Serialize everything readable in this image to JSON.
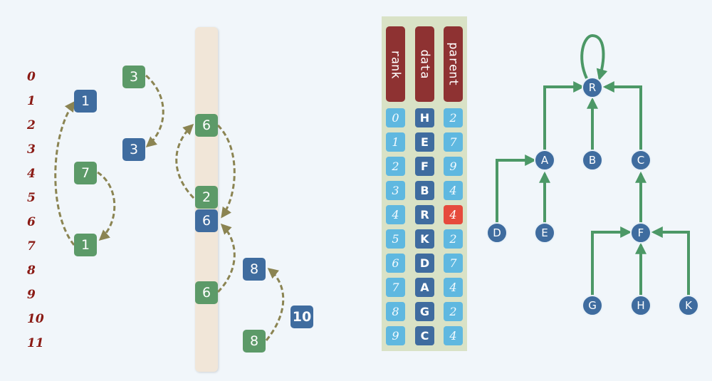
{
  "indices": [
    "0",
    "1",
    "2",
    "3",
    "4",
    "5",
    "6",
    "7",
    "8",
    "9",
    "10",
    "11"
  ],
  "col1": {
    "n1": "1",
    "n7": "7",
    "n1b": "1"
  },
  "col2": {
    "n3a": "3",
    "n3b": "3"
  },
  "col3": {
    "n6a": "6",
    "n2": "2",
    "n6b": "6",
    "n6c": "6"
  },
  "col4": {
    "n8a": "8",
    "n10": "10",
    "n8b": "8"
  },
  "table": {
    "headers": {
      "rank": "rank",
      "data": "data",
      "parent": "parent"
    },
    "rank": [
      "0",
      "1",
      "2",
      "3",
      "4",
      "5",
      "6",
      "7",
      "8",
      "9"
    ],
    "data": [
      "H",
      "E",
      "F",
      "B",
      "R",
      "K",
      "D",
      "A",
      "G",
      "C"
    ],
    "parent": [
      "2",
      "7",
      "9",
      "4",
      "4",
      "2",
      "7",
      "4",
      "2",
      "4"
    ]
  },
  "tree": {
    "R": "R",
    "A": "A",
    "B": "B",
    "C": "C",
    "D": "D",
    "E": "E",
    "F": "F",
    "G": "G",
    "H": "H",
    "K": "K"
  },
  "colors": {
    "green": "#5c9a68",
    "blue": "#3f6c9f",
    "arrow_dashed": "#8b8452",
    "tree_edge": "#4c9866",
    "highlight": "#e64a3c"
  }
}
